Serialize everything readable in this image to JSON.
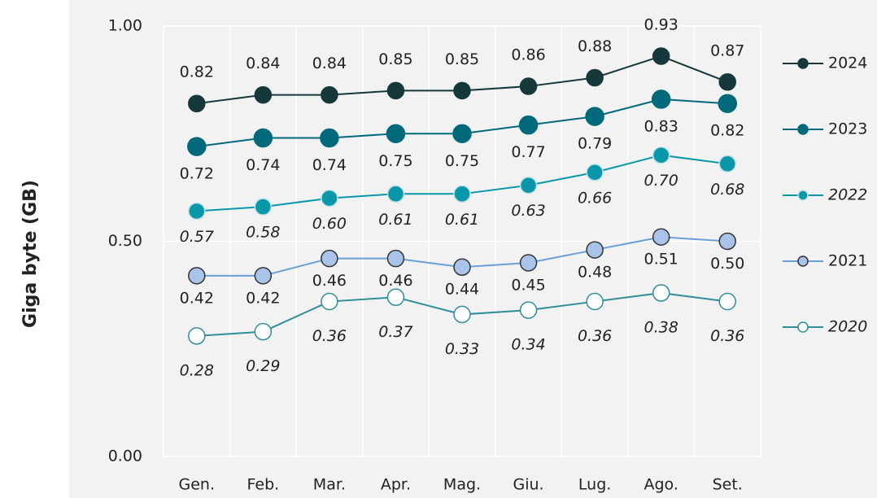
{
  "chart_data": {
    "type": "line",
    "y_label": "Giga byte (GB)",
    "categories": [
      "Gen.",
      "Feb.",
      "Mar.",
      "Apr.",
      "Mag.",
      "Giu.",
      "Lug.",
      "Ago.",
      "Set."
    ],
    "ylim": [
      0,
      1
    ],
    "yticks": [
      {
        "value": 0,
        "label": "0.00"
      },
      {
        "value": 0.5,
        "label": "0.50"
      },
      {
        "value": 1,
        "label": "1.00"
      }
    ],
    "grid": true,
    "legend": "right",
    "series": [
      {
        "name": "2024",
        "color": "#17383a",
        "values": [
          0.82,
          0.84,
          0.84,
          0.85,
          0.85,
          0.86,
          0.88,
          0.93,
          0.87
        ],
        "value_labels": [
          "0.82",
          "0.84",
          "0.84",
          "0.85",
          "0.85",
          "0.86",
          "0.88",
          "0.93",
          "0.87"
        ]
      },
      {
        "name": "2023",
        "color": "#006a7c",
        "values": [
          0.72,
          0.74,
          0.74,
          0.75,
          0.75,
          0.77,
          0.79,
          0.83,
          0.82
        ],
        "value_labels": [
          "0.72",
          "0.74",
          "0.74",
          "0.75",
          "0.75",
          "0.77",
          "0.79",
          "0.83",
          "0.82"
        ]
      },
      {
        "name": "2022",
        "color": "#0b97aa",
        "values": [
          0.57,
          0.58,
          0.6,
          0.61,
          0.61,
          0.63,
          0.66,
          0.7,
          0.68
        ],
        "value_labels": [
          "0.57",
          "0.58",
          "0.60",
          "0.61",
          "0.61",
          "0.63",
          "0.66",
          "0.70",
          "0.68"
        ]
      },
      {
        "name": "2021",
        "color": "#6a9fd8",
        "values": [
          0.42,
          0.42,
          0.46,
          0.46,
          0.44,
          0.45,
          0.48,
          0.51,
          0.5
        ],
        "value_labels": [
          "0.42",
          "0.42",
          "0.46",
          "0.46",
          "0.44",
          "0.45",
          "0.48",
          "0.51",
          "0.50"
        ]
      },
      {
        "name": "2020",
        "color": "#2e8e9a",
        "values": [
          0.28,
          0.29,
          0.36,
          0.37,
          0.33,
          0.34,
          0.36,
          0.38,
          0.36
        ],
        "value_labels": [
          "0.28",
          "0.29",
          "0.36",
          "0.37",
          "0.33",
          "0.34",
          "0.36",
          "0.38",
          "0.36"
        ]
      }
    ]
  }
}
